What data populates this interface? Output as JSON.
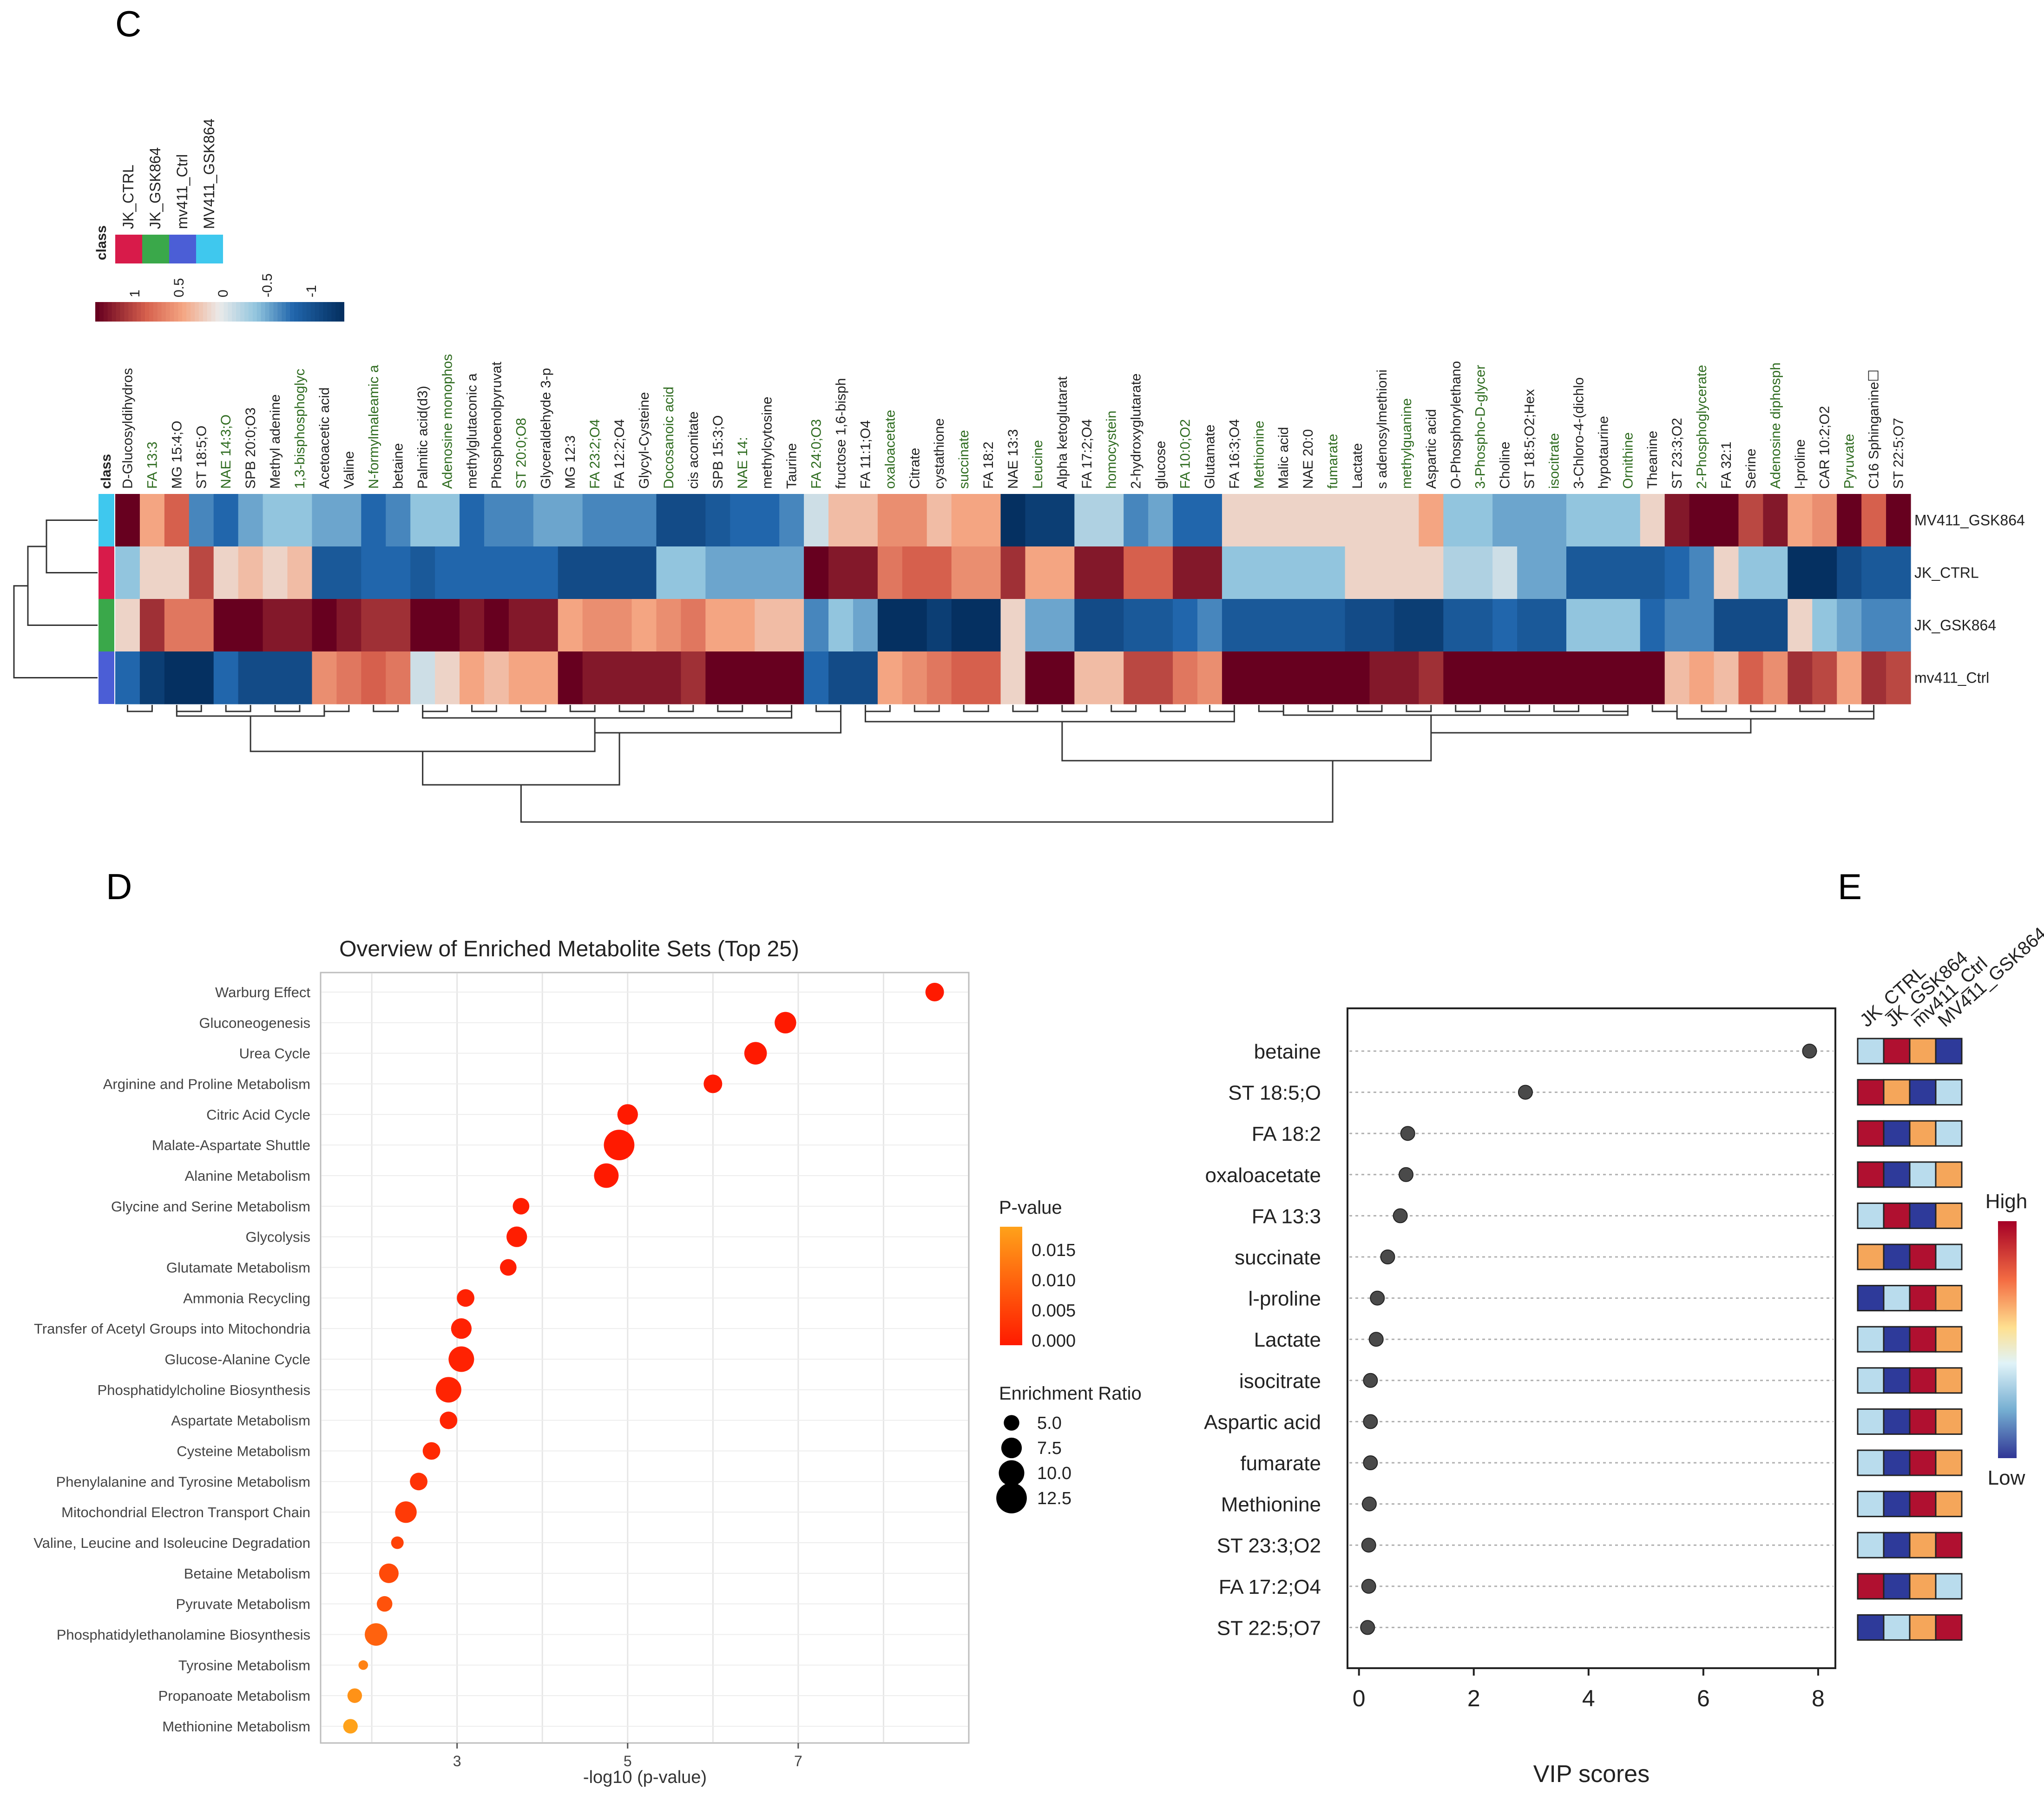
{
  "panels": {
    "c": "C",
    "d": "D",
    "e": "E"
  },
  "heatmap": {
    "class_label": "class",
    "class_legend_title": "class",
    "classes": [
      {
        "name": "JK_CTRL",
        "color": "#d81b4a"
      },
      {
        "name": "JK_GSK864",
        "color": "#3aa84a"
      },
      {
        "name": "mv411_Ctrl",
        "color": "#4b5ed6"
      },
      {
        "name": "MV411_GSK864",
        "color": "#3fc8ee"
      }
    ],
    "scale_ticks": [
      "1",
      "0.5",
      "0",
      "-0.5",
      "-1"
    ],
    "scale_colors": [
      "#67001f",
      "#d6604d",
      "#f7f7f7",
      "#92c5de",
      "#053061"
    ],
    "rows": [
      {
        "name": "MV411_GSK864",
        "class": "MV411_GSK864"
      },
      {
        "name": "JK_CTRL",
        "class": "JK_CTRL"
      },
      {
        "name": "JK_GSK864",
        "class": "JK_GSK864"
      },
      {
        "name": "mv411_Ctrl",
        "class": "mv411_Ctrl"
      }
    ],
    "columns": [
      "D-Glucosyldihydros",
      "FA 13:3",
      "MG 15:4;O",
      "ST 18:5;O",
      "NAE 14:3;O",
      "SPB 20:0;O3",
      "Methyl adenine",
      "1,3-bisphosphoglyc",
      "Acetoacetic acid",
      "Valine",
      "N-formylmaleamic a",
      "betaine",
      "Palmitic acid(d3)",
      "Adenosine monophos",
      "methylglutaconic a",
      "Phosphoenolpyruvat",
      "ST 20:0;O8",
      "Glyceraldehyde 3-p",
      "MG 12:3",
      "FA 23:2;O4",
      "FA 12:2;O4",
      "Glycyl-Cysteine",
      "Docosanoic acid",
      "cis aconitate",
      "SPB 15:3;O",
      "NAE 14:",
      "methylcytosine",
      "Taurine",
      "FA 24:0;O3",
      "fructose 1,6-bisph",
      "FA 11:1;O4",
      "oxaloacetate",
      "Citrate",
      "cystathione",
      "succinate",
      "FA 18:2",
      "NAE 13:3",
      "Leucine",
      "Alpha ketoglutarat",
      "FA 17:2;O4",
      "homocystein",
      "2-hydroxyglutarate",
      "glucose",
      "FA 10:0;O2",
      "Glutamate",
      "FA 16:3;O4",
      "Methionine",
      "Malic acid",
      "NAE 20:0",
      "fumarate",
      "Lactate",
      "s adenosylmethioni",
      "methylguanine",
      "Aspartic acid",
      "O-Phosphorylethano",
      "3-Phospho-D-glycer",
      "Choline",
      "ST 18:5;O2;Hex",
      "isocitrate",
      "3-Chloro-4-(dichlo",
      "hypotaurine",
      "Ornithine",
      "Theanine",
      "ST 23:3;O2",
      "2-Phosphoglycerate",
      "FA 32:1",
      "Serine",
      "Adenosine diphosph",
      "l-proline",
      "CAR 10:2;O2",
      "Pyruvate",
      "C16 Sphinganine☐",
      "ST 22:5;O7"
    ],
    "values": [
      [
        1.0,
        0.3,
        0.6,
        -0.5,
        -0.6,
        -0.4,
        -0.3,
        -0.3,
        -0.4,
        -0.4,
        -0.6,
        -0.5,
        -0.3,
        -0.3,
        -0.6,
        -0.5,
        -0.5,
        -0.4,
        -0.4,
        -0.5,
        -0.5,
        -0.5,
        -0.8,
        -0.8,
        -0.7,
        -0.6,
        -0.6,
        -0.5,
        -0.1,
        0.2,
        0.2,
        0.4,
        0.4,
        0.2,
        0.3,
        0.3,
        -1.0,
        -0.9,
        -0.9,
        -0.2,
        -0.2,
        -0.5,
        -0.4,
        -0.6,
        -0.6,
        0.1,
        0.1,
        0.1,
        0.1,
        0.1,
        0.1,
        0.1,
        0.1,
        0.3,
        -0.3,
        -0.3,
        -0.4,
        -0.4,
        -0.4,
        -0.3,
        -0.3,
        -0.3,
        0.1,
        0.9,
        1.0,
        1.0,
        0.7,
        0.9,
        0.3,
        0.4,
        1.0,
        0.6,
        1.0
      ],
      [
        -0.3,
        0.1,
        0.1,
        0.7,
        0.1,
        0.2,
        0.1,
        0.2,
        -0.7,
        -0.7,
        -0.6,
        -0.6,
        -0.7,
        -0.6,
        -0.6,
        -0.6,
        -0.6,
        -0.6,
        -0.8,
        -0.8,
        -0.8,
        -0.8,
        -0.3,
        -0.3,
        -0.4,
        -0.4,
        -0.4,
        -0.4,
        1.0,
        0.9,
        0.9,
        0.5,
        0.6,
        0.6,
        0.4,
        0.4,
        0.8,
        0.3,
        0.3,
        0.9,
        0.9,
        0.6,
        0.6,
        0.9,
        0.9,
        -0.3,
        -0.3,
        -0.3,
        -0.3,
        -0.3,
        0.1,
        0.1,
        0.1,
        0.1,
        -0.2,
        -0.2,
        -0.1,
        -0.4,
        -0.4,
        -0.7,
        -0.7,
        -0.7,
        -0.7,
        -0.6,
        -0.5,
        0.1,
        -0.3,
        -0.3,
        -1.0,
        -1.0,
        -0.8,
        -0.7,
        -0.7
      ],
      [
        0.1,
        0.8,
        0.5,
        0.5,
        1.0,
        1.0,
        0.9,
        0.9,
        1.0,
        0.9,
        0.8,
        0.8,
        1.0,
        1.0,
        0.9,
        1.0,
        0.9,
        0.9,
        0.3,
        0.4,
        0.4,
        0.3,
        0.4,
        0.5,
        0.3,
        0.3,
        0.2,
        0.2,
        -0.5,
        -0.3,
        -0.4,
        -1.0,
        -1.0,
        -0.9,
        -1.0,
        -1.0,
        0.1,
        -0.4,
        -0.4,
        -0.8,
        -0.8,
        -0.7,
        -0.7,
        -0.6,
        -0.5,
        -0.7,
        -0.7,
        -0.7,
        -0.7,
        -0.7,
        -0.8,
        -0.8,
        -0.9,
        -0.9,
        -0.7,
        -0.7,
        -0.6,
        -0.7,
        -0.7,
        -0.3,
        -0.3,
        -0.3,
        -0.6,
        -0.5,
        -0.5,
        -0.8,
        -0.8,
        -0.8,
        0.1,
        -0.3,
        -0.4,
        -0.5,
        -0.5
      ],
      [
        -0.6,
        -0.9,
        -1.0,
        -1.0,
        -0.6,
        -0.8,
        -0.8,
        -0.8,
        0.4,
        0.5,
        0.6,
        0.5,
        -0.1,
        0.1,
        0.3,
        0.2,
        0.3,
        0.3,
        1.0,
        0.9,
        0.9,
        0.9,
        0.9,
        0.8,
        1.0,
        1.0,
        1.0,
        1.0,
        -0.6,
        -0.8,
        -0.8,
        0.3,
        0.4,
        0.5,
        0.6,
        0.6,
        0.1,
        1.0,
        1.0,
        0.2,
        0.2,
        0.7,
        0.7,
        0.5,
        0.4,
        1.0,
        1.0,
        1.0,
        1.0,
        1.0,
        1.0,
        0.9,
        0.9,
        0.8,
        1.0,
        1.0,
        1.0,
        1.0,
        1.0,
        1.0,
        1.0,
        1.0,
        1.0,
        0.2,
        0.3,
        0.2,
        0.6,
        0.4,
        0.8,
        0.7,
        0.3,
        0.8,
        0.7
      ]
    ]
  },
  "enrichment": {
    "title": "Overview of Enriched Metabolite Sets (Top 25)",
    "xlabel": "-log10 (p-value)",
    "x_ticks": [
      "3",
      "5",
      "7"
    ],
    "pvalue_legend_title": "P-value",
    "pvalue_ticks": [
      "0.015",
      "0.010",
      "0.005",
      "0.000"
    ],
    "size_legend_title": "Enrichment Ratio",
    "size_ticks": [
      "5.0",
      "7.5",
      "10.0",
      "12.5"
    ],
    "colors": {
      "low_p": "#ff1a00",
      "high_p": "#ffa21a"
    }
  },
  "vip": {
    "xlabel": "VIP scores",
    "x_ticks": [
      "0",
      "2",
      "4",
      "6",
      "8"
    ],
    "columns": [
      "JK_CTRL",
      "JK_GSK864",
      "mv411_Ctrl",
      "MV411_GSK864"
    ],
    "legend_high": "High",
    "legend_low": "Low",
    "cell_colors": {
      "low": "#2e3a9a",
      "midlow": "#b9dced",
      "midhigh": "#f5a65a",
      "high": "#b01030"
    }
  },
  "chart_data": [
    {
      "type": "heatmap",
      "title": "",
      "rows": [
        "MV411_GSK864",
        "JK_CTRL",
        "JK_GSK864",
        "mv411_Ctrl"
      ],
      "columns_ref": "heatmap.columns",
      "values_ref": "heatmap.values",
      "value_range": [
        -1,
        1
      ]
    },
    {
      "type": "scatter",
      "title": "Overview of Enriched Metabolite Sets (Top 25)",
      "xlabel": "-log10 (p-value)",
      "ylabel": "",
      "xlim": [
        1.4,
        9.0
      ],
      "points": [
        {
          "label": "Warburg Effect",
          "x": 8.6,
          "p": 0.0,
          "ratio": 6.5
        },
        {
          "label": "Gluconeogenesis",
          "x": 6.85,
          "p": 0.0,
          "ratio": 8.0
        },
        {
          "label": "Urea Cycle",
          "x": 6.5,
          "p": 0.0,
          "ratio": 8.5
        },
        {
          "label": "Arginine and Proline Metabolism",
          "x": 6.0,
          "p": 0.0,
          "ratio": 6.5
        },
        {
          "label": "Citric Acid Cycle",
          "x": 5.0,
          "p": 0.0,
          "ratio": 7.5
        },
        {
          "label": "Malate-Aspartate Shuttle",
          "x": 4.9,
          "p": 0.0,
          "ratio": 12.5
        },
        {
          "label": "Alanine Metabolism",
          "x": 4.75,
          "p": 0.0,
          "ratio": 9.5
        },
        {
          "label": "Glycine and Serine Metabolism",
          "x": 3.75,
          "p": 0.0005,
          "ratio": 5.5
        },
        {
          "label": "Glycolysis",
          "x": 3.7,
          "p": 0.0005,
          "ratio": 7.5
        },
        {
          "label": "Glutamate Metabolism",
          "x": 3.6,
          "p": 0.0005,
          "ratio": 5.5
        },
        {
          "label": "Ammonia Recycling",
          "x": 3.1,
          "p": 0.001,
          "ratio": 6.0
        },
        {
          "label": "Transfer of Acetyl Groups into Mitochondria",
          "x": 3.05,
          "p": 0.001,
          "ratio": 7.5
        },
        {
          "label": "Glucose-Alanine Cycle",
          "x": 3.05,
          "p": 0.001,
          "ratio": 10.0
        },
        {
          "label": "Phosphatidylcholine Biosynthesis",
          "x": 2.9,
          "p": 0.0012,
          "ratio": 10.0
        },
        {
          "label": "Aspartate Metabolism",
          "x": 2.9,
          "p": 0.0012,
          "ratio": 6.0
        },
        {
          "label": "Cysteine Metabolism",
          "x": 2.7,
          "p": 0.002,
          "ratio": 6.0
        },
        {
          "label": "Phenylalanine and Tyrosine Metabolism",
          "x": 2.55,
          "p": 0.003,
          "ratio": 6.0
        },
        {
          "label": "Mitochondrial Electron Transport Chain",
          "x": 2.4,
          "p": 0.004,
          "ratio": 8.0
        },
        {
          "label": "Valine, Leucine and Isoleucine Degradation",
          "x": 2.3,
          "p": 0.005,
          "ratio": 3.5
        },
        {
          "label": "Betaine Metabolism",
          "x": 2.2,
          "p": 0.006,
          "ratio": 7.0
        },
        {
          "label": "Pyruvate Metabolism",
          "x": 2.15,
          "p": 0.007,
          "ratio": 5.0
        },
        {
          "label": "Phosphatidylethanolamine Biosynthesis",
          "x": 2.05,
          "p": 0.009,
          "ratio": 8.5
        },
        {
          "label": "Tyrosine Metabolism",
          "x": 1.9,
          "p": 0.013,
          "ratio": 2.0
        },
        {
          "label": "Propanoate Metabolism",
          "x": 1.8,
          "p": 0.015,
          "ratio": 4.5
        },
        {
          "label": "Methionine Metabolism",
          "x": 1.75,
          "p": 0.017,
          "ratio": 4.5
        }
      ]
    },
    {
      "type": "scatter",
      "title": "VIP scores",
      "xlabel": "VIP scores",
      "xlim": [
        -0.2,
        8.3
      ],
      "points": [
        {
          "label": "betaine",
          "x": 7.85,
          "levels": [
            "midlow",
            "high",
            "midhigh",
            "low"
          ]
        },
        {
          "label": "ST 18:5;O",
          "x": 2.9,
          "levels": [
            "high",
            "midhigh",
            "low",
            "midlow"
          ]
        },
        {
          "label": "FA 18:2",
          "x": 0.85,
          "levels": [
            "high",
            "low",
            "midhigh",
            "midlow"
          ]
        },
        {
          "label": "oxaloacetate",
          "x": 0.82,
          "levels": [
            "high",
            "low",
            "midlow",
            "midhigh"
          ]
        },
        {
          "label": "FA 13:3",
          "x": 0.72,
          "levels": [
            "midlow",
            "high",
            "low",
            "midhigh"
          ]
        },
        {
          "label": "succinate",
          "x": 0.5,
          "levels": [
            "midhigh",
            "low",
            "high",
            "midlow"
          ]
        },
        {
          "label": "l-proline",
          "x": 0.32,
          "levels": [
            "low",
            "midlow",
            "high",
            "midhigh"
          ]
        },
        {
          "label": "Lactate",
          "x": 0.3,
          "levels": [
            "midlow",
            "low",
            "high",
            "midhigh"
          ]
        },
        {
          "label": "isocitrate",
          "x": 0.2,
          "levels": [
            "midlow",
            "low",
            "high",
            "midhigh"
          ]
        },
        {
          "label": "Aspartic acid",
          "x": 0.2,
          "levels": [
            "midlow",
            "low",
            "high",
            "midhigh"
          ]
        },
        {
          "label": "fumarate",
          "x": 0.2,
          "levels": [
            "midlow",
            "low",
            "high",
            "midhigh"
          ]
        },
        {
          "label": "Methionine",
          "x": 0.18,
          "levels": [
            "midlow",
            "low",
            "high",
            "midhigh"
          ]
        },
        {
          "label": "ST 23:3;O2",
          "x": 0.17,
          "levels": [
            "midlow",
            "low",
            "midhigh",
            "high"
          ]
        },
        {
          "label": "FA 17:2;O4",
          "x": 0.17,
          "levels": [
            "high",
            "low",
            "midhigh",
            "midlow"
          ]
        },
        {
          "label": "ST 22:5;O7",
          "x": 0.15,
          "levels": [
            "low",
            "midlow",
            "midhigh",
            "high"
          ]
        }
      ]
    }
  ]
}
